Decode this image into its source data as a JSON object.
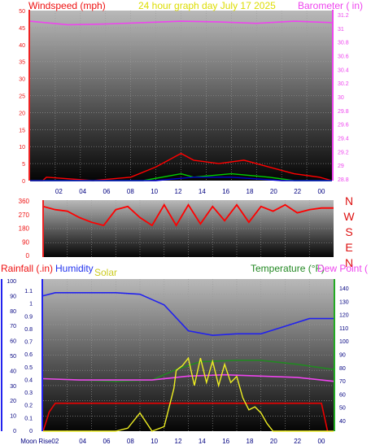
{
  "chart_data": [
    {
      "type": "line",
      "header_left": "Windspeed (mph)",
      "header_center": "24 hour graph day   July 17 2025",
      "header_right": "Barometer ( in)",
      "x": [
        "02",
        "04",
        "06",
        "08",
        "10",
        "12",
        "14",
        "16",
        "18",
        "20",
        "22",
        "00"
      ],
      "left_axis": {
        "label": "Windspeed (mph)",
        "ticks": [
          "50",
          "45",
          "40",
          "35",
          "30",
          "25",
          "20",
          "15",
          "10",
          "5",
          "0"
        ],
        "range": [
          0,
          50
        ]
      },
      "right_axis": {
        "label": "Barometer ( in)",
        "ticks": [
          "31.2",
          "31",
          "30.8",
          "30.6",
          "30.4",
          "30.2",
          "30",
          "29.8",
          "29.6",
          "29.4",
          "29.2",
          "29",
          "28.8"
        ],
        "range": [
          28.8,
          31.2
        ]
      },
      "series": [
        {
          "name": "",
          "color": "#ee44ee",
          "axis": "right",
          "x": [
            0,
            3,
            6,
            9,
            12,
            15,
            18,
            21,
            24
          ],
          "y": [
            31.05,
            31.0,
            31.01,
            31.03,
            31.05,
            31.04,
            31.02,
            31.05,
            31.03
          ]
        },
        {
          "name": "",
          "color": "#ff0000",
          "axis": "left",
          "x": [
            0,
            1,
            1.3,
            5,
            8,
            10,
            12,
            13,
            15,
            17,
            19,
            21,
            23,
            24
          ],
          "y": [
            0,
            0,
            1,
            0,
            1,
            4,
            8,
            6,
            5,
            6,
            4,
            2,
            1,
            0
          ]
        },
        {
          "name": "",
          "color": "#00cc00",
          "axis": "left",
          "x": [
            0,
            9,
            12,
            13,
            16,
            19,
            21,
            24
          ],
          "y": [
            0,
            0,
            2,
            1,
            2,
            1,
            0,
            0
          ]
        },
        {
          "name": "",
          "color": "#0000cc",
          "axis": "left",
          "x": [
            0,
            10,
            13,
            16,
            20,
            24
          ],
          "y": [
            0,
            0,
            1,
            1,
            0,
            0
          ]
        }
      ],
      "grid": true
    },
    {
      "type": "line",
      "title": "",
      "x": [
        "02",
        "04",
        "06",
        "08",
        "10",
        "12",
        "14",
        "16",
        "18",
        "20",
        "22",
        "00"
      ],
      "left_axis": {
        "ticks": [
          "360",
          "270",
          "180",
          "90",
          "0"
        ],
        "range": [
          0,
          360
        ]
      },
      "compass_labels": [
        "N",
        "W",
        "S",
        "E",
        "N"
      ],
      "series": [
        {
          "name": "",
          "color": "#ff0000",
          "x": [
            0,
            1,
            2,
            3,
            4,
            5,
            6,
            7,
            8,
            9,
            10,
            11,
            12,
            13,
            14,
            15,
            16,
            17,
            18,
            19,
            20,
            21,
            22,
            23,
            24
          ],
          "y": [
            320,
            300,
            290,
            250,
            220,
            200,
            300,
            320,
            250,
            200,
            330,
            200,
            330,
            210,
            320,
            230,
            330,
            220,
            320,
            290,
            330,
            280,
            300,
            310,
            310
          ]
        }
      ],
      "grid": true
    },
    {
      "type": "line",
      "header_left": "Rainfall (.in)",
      "header_humidity": "Humidity",
      "header_solar": "Solar",
      "header_right": "Temperature (°F)",
      "header_dewpoint": "Dew Point (",
      "x": [
        "Moon Rise02",
        "04",
        "06",
        "08",
        "10",
        "12",
        "14",
        "16",
        "18",
        "20",
        "22",
        "00"
      ],
      "rain_axis": {
        "ticks": [
          "1.1",
          "1",
          "0.9",
          "0.8",
          "0.7",
          "0.6",
          "0.5",
          "0.4",
          "0.3",
          "0.2",
          "0.1",
          "0"
        ],
        "range": [
          0,
          1.2
        ]
      },
      "humidity_axis": {
        "ticks": [
          "100",
          "90",
          "80",
          "70",
          "60",
          "50",
          "40",
          "30",
          "20",
          "10",
          "0"
        ],
        "range": [
          0,
          100
        ]
      },
      "temperature_axis": {
        "ticks": [
          "140",
          "130",
          "120",
          "110",
          "100",
          "90",
          "80",
          "70",
          "60",
          "50",
          "40"
        ],
        "range": [
          32,
          148
        ]
      },
      "series": [
        {
          "name": "Humidity",
          "color": "#2222ee",
          "axis": "humidity",
          "x": [
            0,
            1,
            3,
            6,
            8,
            10,
            12,
            14,
            16,
            18,
            20,
            22,
            24
          ],
          "y": [
            89,
            91,
            91,
            91,
            90,
            83,
            66,
            63,
            64,
            64,
            69,
            74,
            74
          ]
        },
        {
          "name": "Temperature",
          "color": "#228822",
          "axis": "temperature",
          "x": [
            0,
            3,
            6,
            9,
            11,
            13,
            16,
            18,
            21,
            24
          ],
          "y": [
            72,
            71,
            70,
            71,
            79,
            85,
            86,
            86,
            83,
            79
          ]
        },
        {
          "name": "Dew Point",
          "color": "#ee44ee",
          "axis": "temperature",
          "x": [
            0,
            3,
            6,
            9,
            12,
            15,
            18,
            21,
            24
          ],
          "y": [
            72,
            71,
            71,
            71,
            74,
            75,
            74,
            73,
            70
          ]
        },
        {
          "name": "Rainfall",
          "color": "#ee0000",
          "axis": "rain",
          "x": [
            0,
            0.5,
            1,
            5,
            12,
            20,
            23,
            23.5
          ],
          "y": [
            0,
            0.15,
            0.22,
            0.22,
            0.22,
            0.22,
            0.22,
            0
          ]
        },
        {
          "name": "Solar",
          "color": "#eeee22",
          "axis": "humidity",
          "x": [
            0,
            6,
            7,
            8,
            9,
            10,
            10.8,
            11,
            11.5,
            12,
            12.5,
            13,
            13.5,
            14,
            14.5,
            15,
            15.5,
            16,
            16.5,
            17,
            17.5,
            18,
            18.5,
            19,
            24
          ],
          "y": [
            0,
            0,
            2,
            12,
            0,
            3,
            28,
            40,
            43,
            48,
            30,
            48,
            32,
            46,
            30,
            44,
            32,
            36,
            22,
            14,
            16,
            12,
            5,
            0,
            0
          ]
        }
      ],
      "grid": true
    }
  ]
}
